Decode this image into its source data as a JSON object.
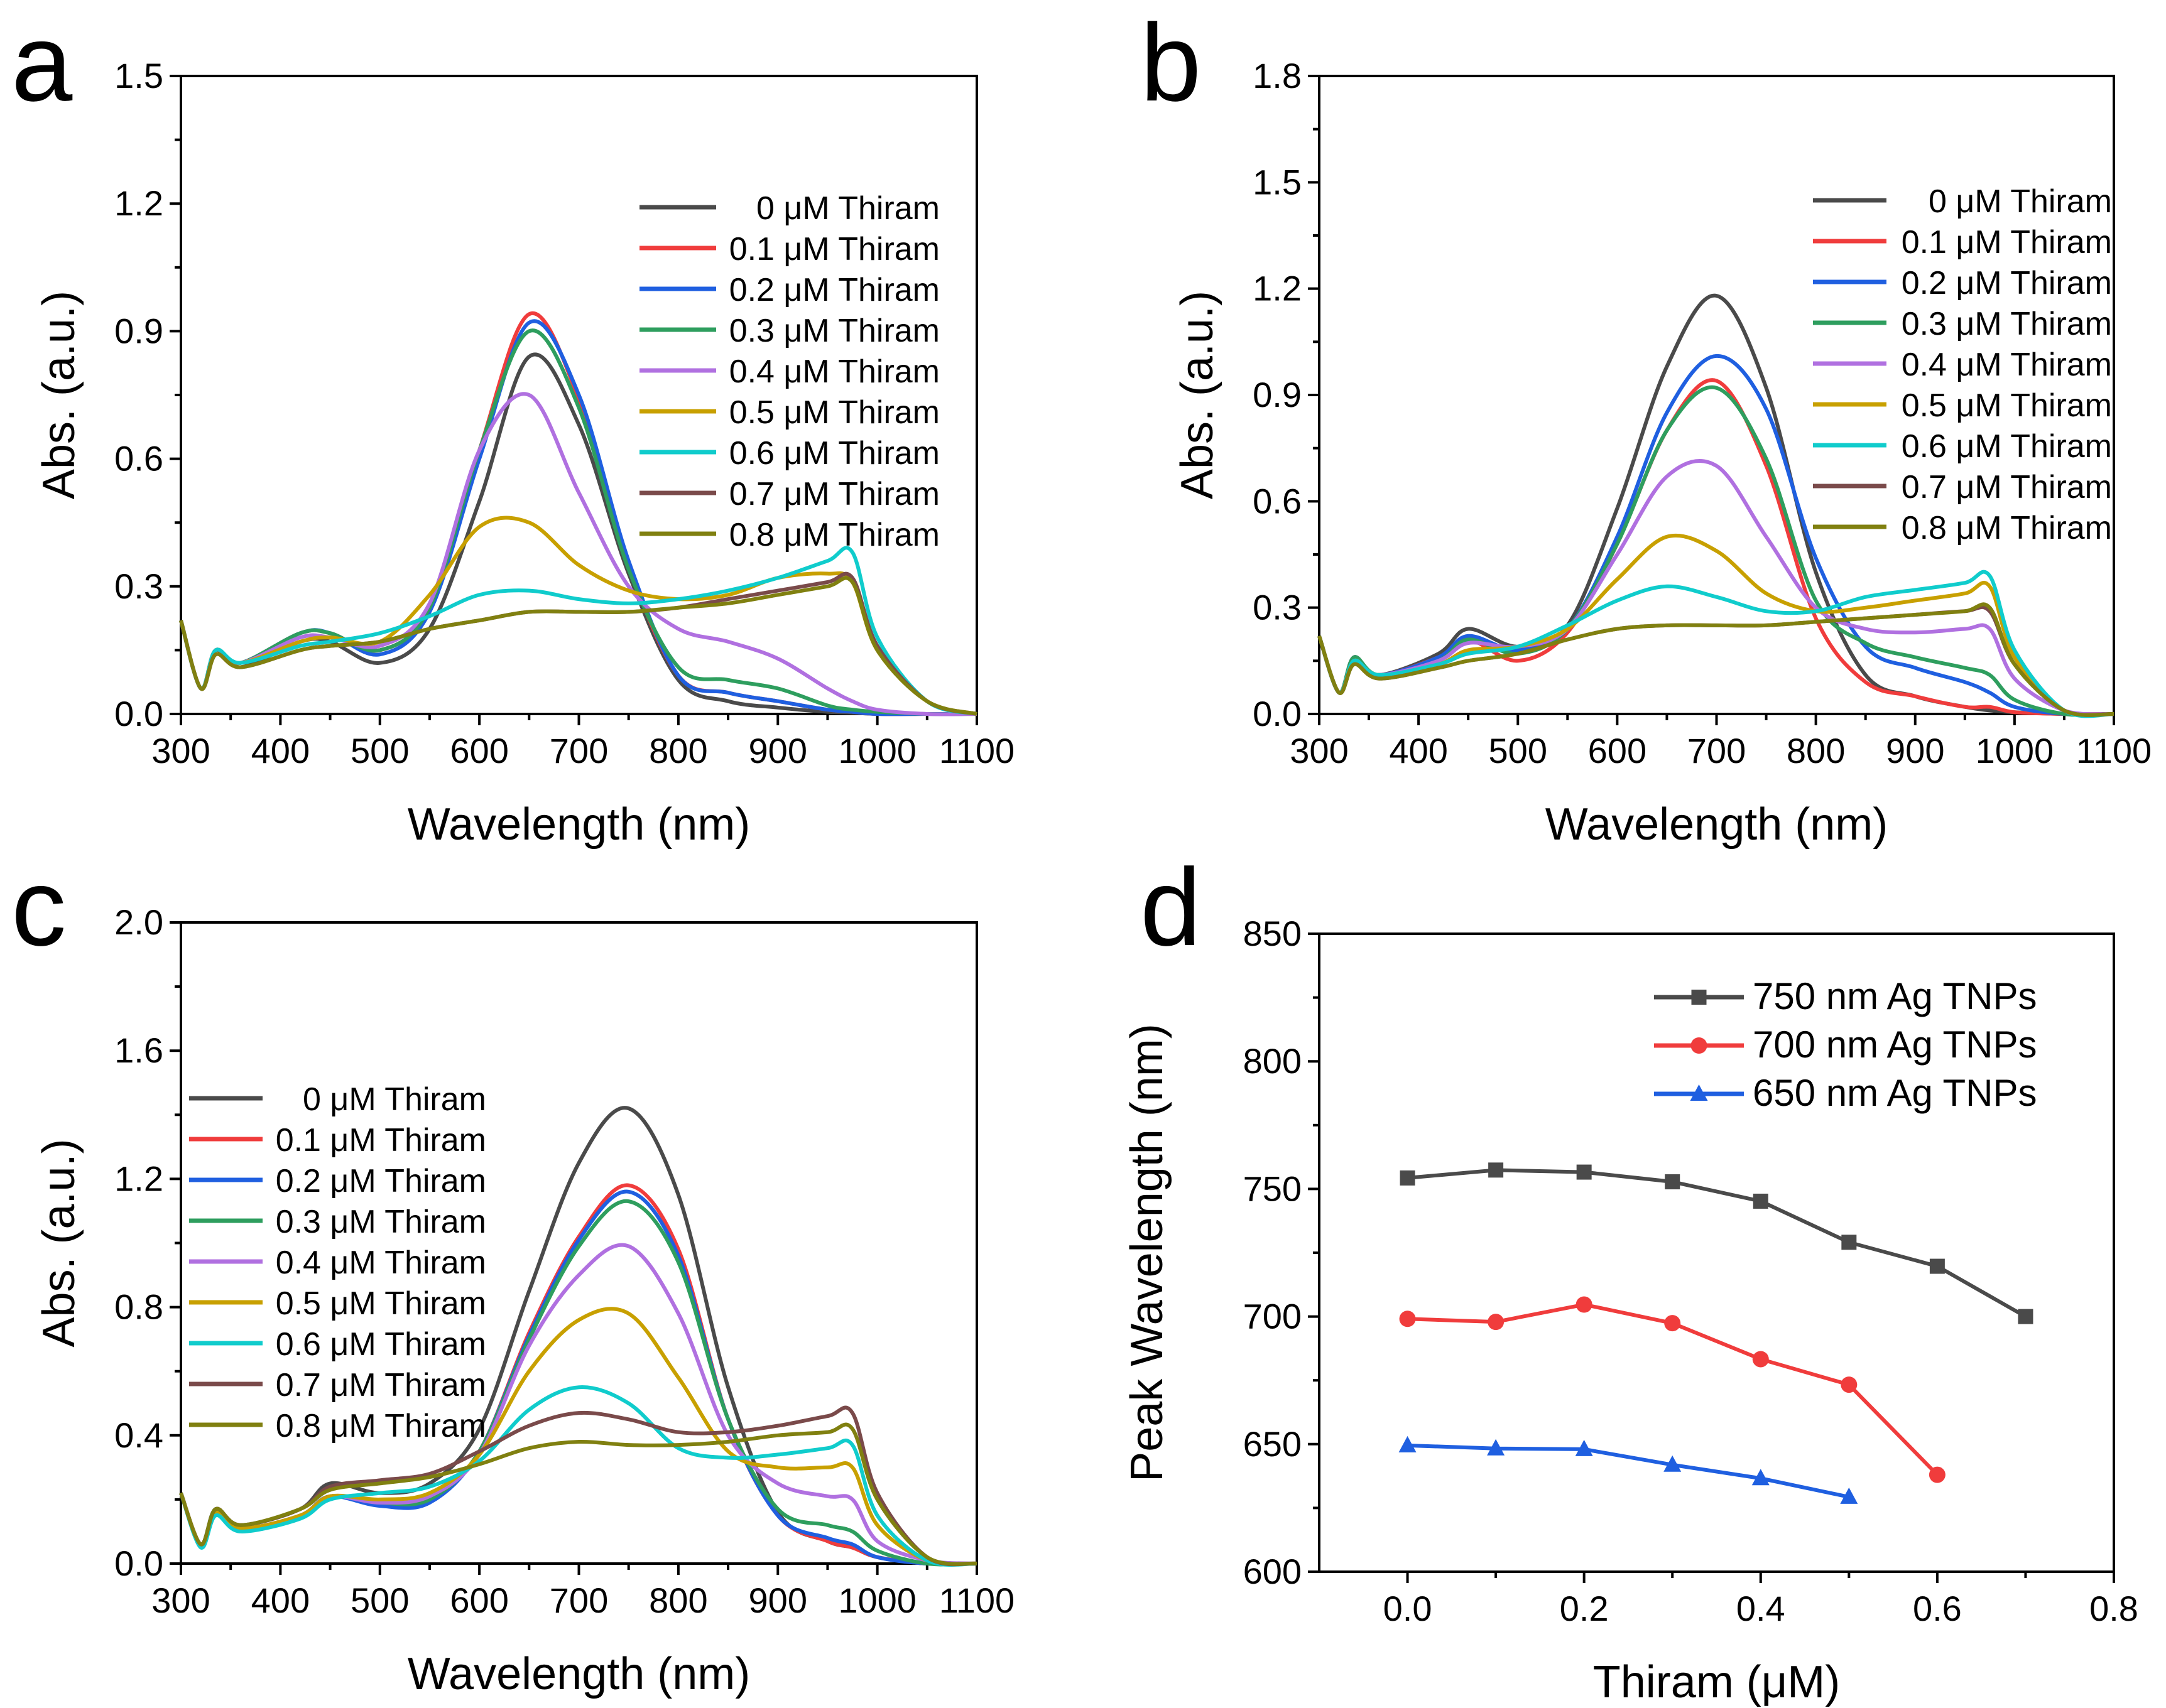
{
  "series_colors": [
    "#4a4a4a",
    "#f03c3c",
    "#1f5fe0",
    "#2e9e5e",
    "#b070e0",
    "#c8a000",
    "#10cccc",
    "#7a4a4a",
    "#808010"
  ],
  "chart_data": [
    {
      "panel_label": "a",
      "type": "line",
      "xlabel": "Wavelength (nm)",
      "ylabel": "Abs. (a.u.)",
      "xlim": [
        300,
        1100
      ],
      "ylim": [
        0,
        1.5
      ],
      "x_ticks": [
        "300",
        "400",
        "500",
        "600",
        "700",
        "800",
        "900",
        "1000",
        "1100"
      ],
      "y_ticks": [
        "0.0",
        "0.3",
        "0.6",
        "0.9",
        "1.2",
        "1.5"
      ],
      "legend_position": "top-right",
      "x": [
        300,
        320,
        335,
        360,
        420,
        450,
        500,
        550,
        600,
        650,
        700,
        750,
        800,
        850,
        900,
        950,
        975,
        1000,
        1050,
        1100
      ],
      "series": [
        {
          "name": "0 μM Thiram",
          "values": [
            0.22,
            0.06,
            0.15,
            0.11,
            0.17,
            0.17,
            0.12,
            0.2,
            0.5,
            0.84,
            0.68,
            0.33,
            0.08,
            0.03,
            0.015,
            0.005,
            0.003,
            0,
            0,
            0
          ]
        },
        {
          "name": "0.1 μM Thiram",
          "values": [
            0.22,
            0.06,
            0.15,
            0.12,
            0.19,
            0.19,
            0.15,
            0.25,
            0.62,
            0.94,
            0.74,
            0.35,
            0.09,
            0.05,
            0.03,
            0.01,
            0.005,
            0,
            0,
            0
          ]
        },
        {
          "name": "0.2 μM Thiram",
          "values": [
            0.22,
            0.06,
            0.15,
            0.12,
            0.19,
            0.19,
            0.14,
            0.24,
            0.6,
            0.92,
            0.75,
            0.36,
            0.09,
            0.05,
            0.03,
            0.01,
            0.005,
            0,
            0,
            0
          ]
        },
        {
          "name": "0.3 μM Thiram",
          "values": [
            0.22,
            0.06,
            0.15,
            0.12,
            0.19,
            0.19,
            0.15,
            0.25,
            0.62,
            0.9,
            0.72,
            0.34,
            0.11,
            0.08,
            0.06,
            0.02,
            0.01,
            0.005,
            0,
            0
          ]
        },
        {
          "name": "0.4 μM Thiram",
          "values": [
            0.22,
            0.06,
            0.15,
            0.12,
            0.18,
            0.18,
            0.16,
            0.26,
            0.62,
            0.75,
            0.52,
            0.3,
            0.2,
            0.17,
            0.13,
            0.06,
            0.03,
            0.01,
            0,
            0
          ]
        },
        {
          "name": "0.5 μM Thiram",
          "values": [
            0.22,
            0.06,
            0.15,
            0.12,
            0.17,
            0.18,
            0.17,
            0.28,
            0.44,
            0.45,
            0.35,
            0.29,
            0.27,
            0.28,
            0.32,
            0.33,
            0.31,
            0.15,
            0.03,
            0
          ]
        },
        {
          "name": "0.6 μM Thiram",
          "values": [
            0.22,
            0.06,
            0.15,
            0.12,
            0.16,
            0.17,
            0.19,
            0.23,
            0.28,
            0.29,
            0.27,
            0.26,
            0.27,
            0.29,
            0.32,
            0.36,
            0.38,
            0.18,
            0.03,
            0
          ]
        },
        {
          "name": "0.7 μM Thiram",
          "values": [
            0.22,
            0.06,
            0.14,
            0.11,
            0.15,
            0.16,
            0.17,
            0.2,
            0.22,
            0.24,
            0.24,
            0.24,
            0.25,
            0.27,
            0.29,
            0.31,
            0.32,
            0.16,
            0.03,
            0
          ]
        },
        {
          "name": "0.8 μM Thiram",
          "values": [
            0.22,
            0.06,
            0.14,
            0.11,
            0.15,
            0.16,
            0.17,
            0.2,
            0.22,
            0.24,
            0.24,
            0.24,
            0.25,
            0.26,
            0.28,
            0.3,
            0.31,
            0.15,
            0.03,
            0
          ]
        }
      ]
    },
    {
      "panel_label": "b",
      "type": "line",
      "xlabel": "Wavelength (nm)",
      "ylabel": "Abs. (a.u.)",
      "xlim": [
        300,
        1100
      ],
      "ylim": [
        0,
        1.8
      ],
      "x_ticks": [
        "300",
        "400",
        "500",
        "600",
        "700",
        "800",
        "900",
        "1000",
        "1100"
      ],
      "y_ticks": [
        "0.0",
        "0.3",
        "0.6",
        "0.9",
        "1.2",
        "1.5",
        "1.8"
      ],
      "legend_position": "top-right",
      "x": [
        300,
        320,
        335,
        360,
        420,
        450,
        500,
        550,
        600,
        650,
        700,
        750,
        800,
        850,
        900,
        950,
        975,
        1000,
        1050,
        1100
      ],
      "series": [
        {
          "name": "0 μM Thiram",
          "values": [
            0.22,
            0.06,
            0.16,
            0.11,
            0.17,
            0.24,
            0.19,
            0.25,
            0.58,
            0.98,
            1.18,
            0.92,
            0.4,
            0.11,
            0.05,
            0.02,
            0.01,
            0.005,
            0,
            0
          ]
        },
        {
          "name": "0.1 μM Thiram",
          "values": [
            0.22,
            0.06,
            0.16,
            0.11,
            0.16,
            0.21,
            0.15,
            0.23,
            0.48,
            0.8,
            0.94,
            0.7,
            0.27,
            0.09,
            0.05,
            0.02,
            0.02,
            0.005,
            0,
            0
          ]
        },
        {
          "name": "0.2 μM Thiram",
          "values": [
            0.22,
            0.06,
            0.16,
            0.11,
            0.16,
            0.22,
            0.18,
            0.24,
            0.5,
            0.85,
            1.01,
            0.86,
            0.44,
            0.19,
            0.13,
            0.09,
            0.06,
            0.02,
            0,
            0
          ]
        },
        {
          "name": "0.3 μM Thiram",
          "values": [
            0.22,
            0.06,
            0.16,
            0.11,
            0.15,
            0.21,
            0.17,
            0.24,
            0.48,
            0.8,
            0.92,
            0.72,
            0.32,
            0.2,
            0.16,
            0.13,
            0.11,
            0.04,
            0,
            0
          ]
        },
        {
          "name": "0.4 μM Thiram",
          "values": [
            0.22,
            0.06,
            0.15,
            0.11,
            0.15,
            0.2,
            0.19,
            0.24,
            0.45,
            0.67,
            0.7,
            0.5,
            0.3,
            0.24,
            0.23,
            0.24,
            0.24,
            0.1,
            0.01,
            0
          ]
        },
        {
          "name": "0.5 μM Thiram",
          "values": [
            0.22,
            0.06,
            0.15,
            0.11,
            0.14,
            0.18,
            0.19,
            0.24,
            0.38,
            0.5,
            0.46,
            0.34,
            0.29,
            0.3,
            0.32,
            0.34,
            0.36,
            0.16,
            0.01,
            0
          ]
        },
        {
          "name": "0.6 μM Thiram",
          "values": [
            0.22,
            0.06,
            0.15,
            0.11,
            0.14,
            0.17,
            0.19,
            0.25,
            0.32,
            0.36,
            0.33,
            0.29,
            0.29,
            0.33,
            0.35,
            0.37,
            0.39,
            0.18,
            0.01,
            0
          ]
        },
        {
          "name": "0.7 μM Thiram",
          "values": [
            0.22,
            0.06,
            0.14,
            0.1,
            0.13,
            0.15,
            0.17,
            0.21,
            0.24,
            0.25,
            0.25,
            0.25,
            0.26,
            0.27,
            0.28,
            0.29,
            0.29,
            0.14,
            0.01,
            0
          ]
        },
        {
          "name": "0.8 μM Thiram",
          "values": [
            0.22,
            0.06,
            0.14,
            0.1,
            0.13,
            0.15,
            0.17,
            0.21,
            0.24,
            0.25,
            0.25,
            0.25,
            0.26,
            0.27,
            0.28,
            0.29,
            0.3,
            0.14,
            0.01,
            0
          ]
        }
      ]
    },
    {
      "panel_label": "c",
      "type": "line",
      "xlabel": "Wavelength (nm)",
      "ylabel": "Abs. (a.u.)",
      "xlim": [
        300,
        1100
      ],
      "ylim": [
        0,
        2.0
      ],
      "x_ticks": [
        "300",
        "400",
        "500",
        "600",
        "700",
        "800",
        "900",
        "1000",
        "1100"
      ],
      "y_ticks": [
        "0.0",
        "0.4",
        "0.8",
        "1.2",
        "1.6",
        "2.0"
      ],
      "legend_position": "left",
      "x": [
        300,
        320,
        335,
        360,
        420,
        450,
        500,
        550,
        600,
        650,
        700,
        750,
        800,
        850,
        900,
        950,
        975,
        1000,
        1050,
        1100
      ],
      "series": [
        {
          "name": "0 μM Thiram",
          "values": [
            0.22,
            0.06,
            0.17,
            0.12,
            0.17,
            0.25,
            0.22,
            0.25,
            0.42,
            0.85,
            1.25,
            1.42,
            1.15,
            0.55,
            0.16,
            0.07,
            0.05,
            0.02,
            0,
            0
          ]
        },
        {
          "name": "0.1 μM Thiram",
          "values": [
            0.22,
            0.06,
            0.17,
            0.11,
            0.15,
            0.21,
            0.19,
            0.2,
            0.35,
            0.72,
            1.02,
            1.18,
            0.98,
            0.45,
            0.15,
            0.07,
            0.05,
            0.02,
            0,
            0
          ]
        },
        {
          "name": "0.2 μM Thiram",
          "values": [
            0.22,
            0.06,
            0.17,
            0.11,
            0.15,
            0.21,
            0.18,
            0.19,
            0.35,
            0.71,
            1.01,
            1.16,
            0.96,
            0.45,
            0.15,
            0.08,
            0.06,
            0.02,
            0,
            0
          ]
        },
        {
          "name": "0.3 μM Thiram",
          "values": [
            0.22,
            0.06,
            0.17,
            0.11,
            0.15,
            0.21,
            0.19,
            0.2,
            0.35,
            0.7,
            0.99,
            1.13,
            0.94,
            0.45,
            0.17,
            0.12,
            0.1,
            0.04,
            0,
            0
          ]
        },
        {
          "name": "0.4 μM Thiram",
          "values": [
            0.22,
            0.06,
            0.16,
            0.11,
            0.15,
            0.21,
            0.19,
            0.21,
            0.34,
            0.68,
            0.9,
            0.99,
            0.78,
            0.4,
            0.25,
            0.21,
            0.2,
            0.07,
            0.01,
            0
          ]
        },
        {
          "name": "0.5 μM Thiram",
          "values": [
            0.22,
            0.06,
            0.16,
            0.11,
            0.15,
            0.21,
            0.2,
            0.22,
            0.34,
            0.6,
            0.76,
            0.78,
            0.58,
            0.35,
            0.3,
            0.3,
            0.3,
            0.12,
            0.01,
            0
          ]
        },
        {
          "name": "0.6 μM Thiram",
          "values": [
            0.22,
            0.05,
            0.15,
            0.1,
            0.14,
            0.2,
            0.22,
            0.24,
            0.32,
            0.48,
            0.55,
            0.5,
            0.36,
            0.33,
            0.34,
            0.36,
            0.37,
            0.15,
            0.01,
            0
          ]
        },
        {
          "name": "0.7 μM Thiram",
          "values": [
            0.22,
            0.06,
            0.17,
            0.12,
            0.17,
            0.24,
            0.26,
            0.28,
            0.35,
            0.43,
            0.47,
            0.45,
            0.41,
            0.41,
            0.43,
            0.46,
            0.47,
            0.22,
            0.02,
            0
          ]
        },
        {
          "name": "0.8 μM Thiram",
          "values": [
            0.22,
            0.06,
            0.17,
            0.12,
            0.17,
            0.23,
            0.25,
            0.27,
            0.31,
            0.36,
            0.38,
            0.37,
            0.37,
            0.38,
            0.4,
            0.41,
            0.42,
            0.2,
            0.02,
            0
          ]
        }
      ]
    },
    {
      "panel_label": "d",
      "type": "line",
      "xlabel": "Thiram (μM)",
      "ylabel": "Peak Wavelength (nm)",
      "xlim": [
        -0.1,
        0.8
      ],
      "ylim": [
        600,
        850
      ],
      "x_ticks": [
        "0.0",
        "0.2",
        "0.4",
        "0.6",
        "0.8"
      ],
      "y_ticks": [
        "600",
        "650",
        "700",
        "750",
        "800",
        "850"
      ],
      "legend_position": "top-right",
      "series": [
        {
          "name": "750 nm Ag TNPs",
          "marker": "square",
          "color": "#4a4a4a",
          "x": [
            0,
            0.1,
            0.2,
            0.3,
            0.4,
            0.5,
            0.6,
            0.7
          ],
          "values": [
            754.3,
            757.4,
            756.6,
            752.8,
            745.2,
            729.1,
            719.7,
            700
          ]
        },
        {
          "name": "700 nm Ag TNPs",
          "marker": "circle",
          "color": "#f03c3c",
          "x": [
            0,
            0.1,
            0.2,
            0.3,
            0.4,
            0.5,
            0.6
          ],
          "values": [
            699.1,
            697.9,
            704.7,
            697.4,
            683.3,
            673.3,
            638
          ]
        },
        {
          "name": "650 nm Ag TNPs",
          "marker": "triangle",
          "color": "#1f5fe0",
          "x": [
            0,
            0.1,
            0.2,
            0.3,
            0.4,
            0.5
          ],
          "values": [
            649.5,
            648.3,
            648,
            641.9,
            636.6,
            629.3
          ]
        }
      ]
    }
  ]
}
